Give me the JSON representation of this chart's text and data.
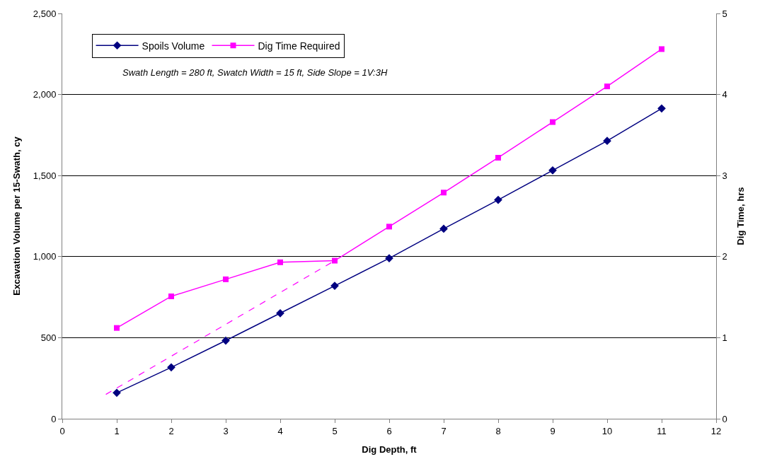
{
  "chart_data": {
    "type": "line",
    "xlabel": "Dig Depth, ft",
    "ylabel": "Excavation Volume per 15-Swath, cy",
    "y2label": "Dig Time, hrs",
    "x": [
      1,
      2,
      3,
      4,
      5,
      6,
      7,
      8,
      9,
      10,
      11
    ],
    "series": [
      {
        "name": "Spoils Volume",
        "color": "#000080",
        "marker": "diamond",
        "values": [
          160,
          317,
          482,
          651,
          820,
          990,
          1172,
          1350,
          1532,
          1714,
          1914
        ]
      },
      {
        "name": "Dig Time Required",
        "color": "#ff00ff",
        "marker": "square",
        "axis": "y2",
        "values": [
          1.12,
          1.51,
          1.72,
          1.93,
          1.95,
          2.37,
          2.79,
          3.22,
          3.66,
          4.1,
          4.56
        ]
      },
      {
        "type": "line",
        "color": "#ff00ff",
        "axis": "y2",
        "line_style": "dashed",
        "marker": "none",
        "x": [
          0.8,
          5
        ],
        "values": [
          0.3,
          1.95
        ]
      }
    ],
    "xlim": [
      0,
      12
    ],
    "xticks": [
      0,
      1,
      2,
      3,
      4,
      5,
      6,
      7,
      8,
      9,
      10,
      11,
      12
    ],
    "ylim": [
      0,
      2500
    ],
    "yticks": [
      {
        "value": 0,
        "label": "0"
      },
      {
        "value": 500,
        "label": "500"
      },
      {
        "value": 1000,
        "label": "1,000"
      },
      {
        "value": 1500,
        "label": "1,500"
      },
      {
        "value": 2000,
        "label": "2,000"
      },
      {
        "value": 2500,
        "label": "2,500"
      }
    ],
    "y2lim": [
      0,
      5
    ],
    "y2ticks": [
      0,
      1,
      2,
      3,
      4,
      5
    ],
    "grid": "y",
    "legend": "top left",
    "annotations": [
      "Swath Length = 280 ft, Swatch Width = 15 ft, Side Slope = 1V:3H"
    ]
  }
}
